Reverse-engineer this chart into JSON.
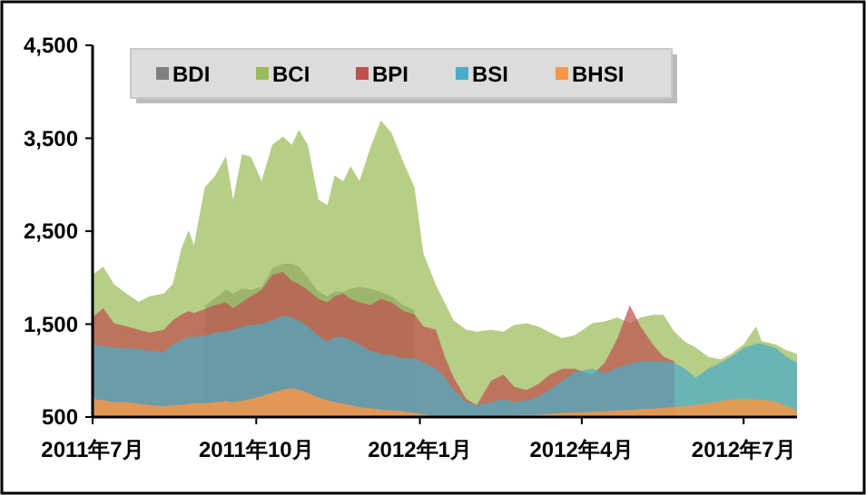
{
  "chart_data": {
    "type": "area",
    "legend": "top",
    "grid": false,
    "x": [
      "2011-07-01",
      "2011-07-07",
      "2011-07-13",
      "2011-07-20",
      "2011-07-27",
      "2011-08-02",
      "2011-08-10",
      "2011-08-15",
      "2011-08-20",
      "2011-08-24",
      "2011-08-27",
      "2011-09-02",
      "2011-09-08",
      "2011-09-14",
      "2011-09-18",
      "2011-09-23",
      "2011-09-28",
      "2011-10-04",
      "2011-10-10",
      "2011-10-16",
      "2011-10-21",
      "2011-10-25",
      "2011-10-30",
      "2011-11-05",
      "2011-11-10",
      "2011-11-14",
      "2011-11-19",
      "2011-11-23",
      "2011-11-28",
      "2011-12-04",
      "2011-12-10",
      "2011-12-16",
      "2011-12-23",
      "2011-12-29",
      "2012-01-03",
      "2012-01-10",
      "2012-01-15",
      "2012-01-20",
      "2012-01-27",
      "2012-02-02",
      "2012-02-10",
      "2012-02-17",
      "2012-02-23",
      "2012-03-01",
      "2012-03-08",
      "2012-03-14",
      "2012-03-21",
      "2012-03-28",
      "2012-04-07",
      "2012-04-14",
      "2012-04-21",
      "2012-04-28",
      "2012-05-04",
      "2012-05-11",
      "2012-05-17",
      "2012-05-23",
      "2012-05-29",
      "2012-06-04",
      "2012-06-11",
      "2012-06-18",
      "2012-06-24",
      "2012-07-01",
      "2012-07-08",
      "2012-07-11",
      "2012-07-19",
      "2012-07-25",
      "2012-07-31"
    ],
    "xlim": [
      "2011-07-01",
      "2012-07-31"
    ],
    "xticks": [
      {
        "value": "2011-07-01",
        "label": "2011年7月"
      },
      {
        "value": "2011-10-01",
        "label": "2011年10月"
      },
      {
        "value": "2012-01-01",
        "label": "2012年1月"
      },
      {
        "value": "2012-04-01",
        "label": "2012年4月"
      },
      {
        "value": "2012-07-01",
        "label": "2012年7月"
      }
    ],
    "ylim": [
      500,
      4500
    ],
    "yticks": [
      {
        "value": 500,
        "label": "500"
      },
      {
        "value": 1500,
        "label": "1,500"
      },
      {
        "value": 2500,
        "label": "2,500"
      },
      {
        "value": 3500,
        "label": "3,500"
      },
      {
        "value": 4500,
        "label": "4,500"
      }
    ],
    "series": [
      {
        "name": "BDI",
        "color": "#808080",
        "values": [
          null,
          null,
          null,
          null,
          null,
          null,
          null,
          null,
          null,
          null,
          null,
          1700,
          1780,
          1870,
          1830,
          1880,
          1870,
          1900,
          2100,
          2150,
          2150,
          2120,
          2000,
          1850,
          1800,
          1850,
          1850,
          1880,
          1900,
          1880,
          1850,
          1800,
          1700,
          1650,
          null,
          null,
          null,
          null,
          null,
          null,
          null,
          null,
          null,
          null,
          null,
          null,
          null,
          null,
          null,
          null,
          null,
          null,
          null,
          null,
          null,
          null,
          null,
          null,
          null,
          null,
          null,
          null,
          null,
          null,
          null,
          null,
          null
        ]
      },
      {
        "name": "BCI",
        "color": "#9bbb59",
        "values": [
          2030,
          2120,
          1930,
          1830,
          1740,
          1800,
          1830,
          1930,
          2320,
          2510,
          2350,
          2970,
          3100,
          3310,
          2840,
          3330,
          3300,
          3040,
          3430,
          3520,
          3430,
          3590,
          3430,
          2840,
          2780,
          3100,
          3040,
          3200,
          3040,
          3390,
          3690,
          3560,
          3230,
          2970,
          2260,
          1920,
          1730,
          1540,
          1440,
          1420,
          1440,
          1420,
          1490,
          1510,
          1470,
          1410,
          1350,
          1380,
          1510,
          1530,
          1570,
          1510,
          1570,
          1600,
          1600,
          1420,
          1310,
          1250,
          1150,
          1120,
          1180,
          1280,
          1475,
          1320,
          1280,
          1220,
          1180
        ]
      },
      {
        "name": "BPI",
        "color": "#c0504d",
        "values": [
          1575,
          1670,
          1510,
          1475,
          1440,
          1410,
          1440,
          1540,
          1605,
          1640,
          1620,
          1660,
          1705,
          1735,
          1670,
          1735,
          1800,
          1865,
          2030,
          2060,
          1965,
          1930,
          1865,
          1770,
          1735,
          1800,
          1830,
          1770,
          1735,
          1705,
          1770,
          1735,
          1640,
          1605,
          1475,
          1440,
          1150,
          925,
          695,
          630,
          890,
          955,
          825,
          790,
          860,
          955,
          1020,
          1020,
          955,
          1085,
          1345,
          1705,
          1475,
          1280,
          1150,
          1100,
          null,
          null,
          null,
          null,
          null,
          null,
          null,
          null,
          null,
          null,
          null
        ]
      },
      {
        "name": "BSI",
        "color": "#4bacc6",
        "values": [
          1280,
          1265,
          1250,
          1240,
          1235,
          1215,
          1200,
          1280,
          1330,
          1360,
          1360,
          1375,
          1410,
          1420,
          1440,
          1475,
          1490,
          1505,
          1540,
          1590,
          1570,
          1540,
          1475,
          1375,
          1310,
          1360,
          1360,
          1330,
          1280,
          1215,
          1180,
          1160,
          1135,
          1135,
          1085,
          1020,
          925,
          795,
          660,
          630,
          660,
          695,
          660,
          680,
          725,
          795,
          890,
          985,
          1020,
          970,
          1030,
          1070,
          1100,
          1100,
          1100,
          1085,
          1020,
          925,
          1020,
          1085,
          1150,
          1245,
          1290,
          1290,
          1245,
          1150,
          1085
        ]
      },
      {
        "name": "BHSI",
        "color": "#f79646",
        "values": [
          695,
          680,
          660,
          660,
          645,
          630,
          615,
          630,
          630,
          645,
          650,
          650,
          660,
          670,
          660,
          675,
          695,
          725,
          760,
          795,
          810,
          795,
          760,
          710,
          680,
          660,
          645,
          630,
          605,
          595,
          580,
          570,
          560,
          545,
          530,
          510,
          510,
          510,
          510,
          510,
          505,
          510,
          515,
          520,
          525,
          535,
          545,
          550,
          555,
          560,
          570,
          575,
          585,
          590,
          600,
          610,
          620,
          630,
          650,
          670,
          690,
          695,
          690,
          685,
          665,
          620,
          570
        ]
      }
    ]
  }
}
